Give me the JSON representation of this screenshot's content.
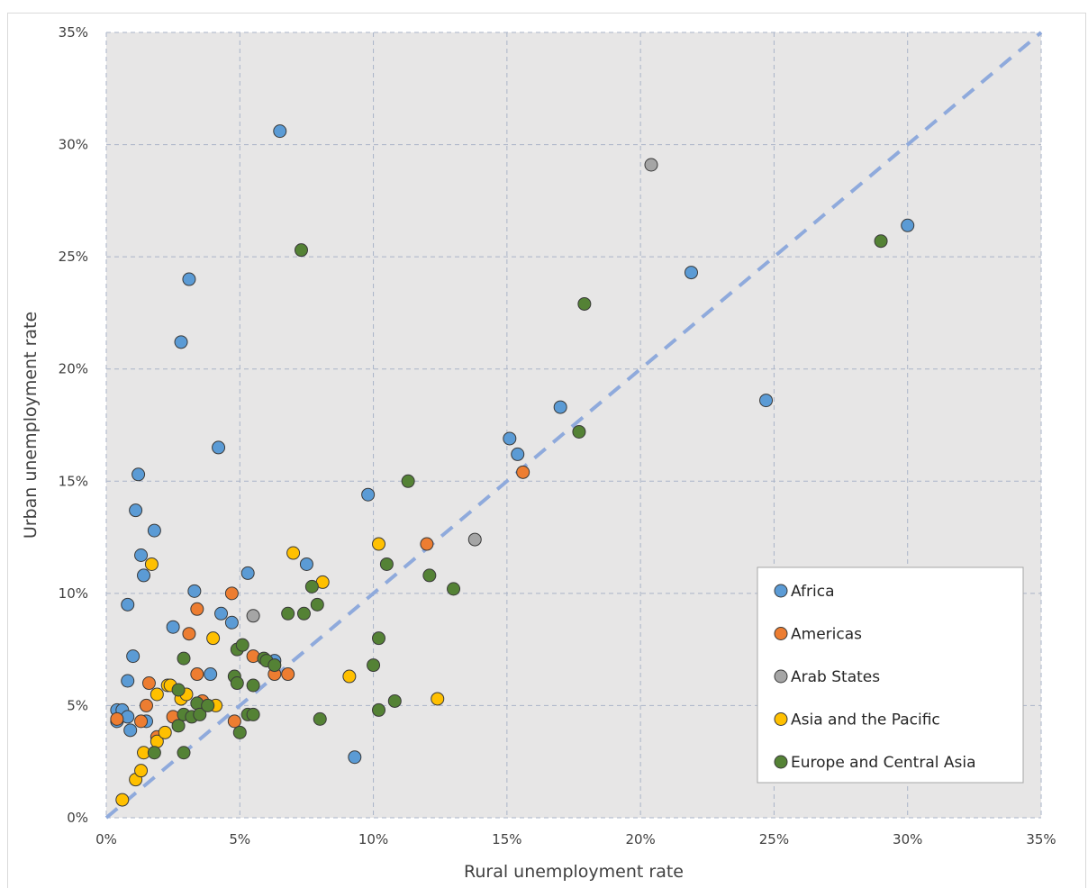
{
  "chart_data": {
    "type": "scatter",
    "xlabel": "Rural unemployment rate",
    "ylabel": "Urban unemployment rate",
    "xlim": [
      0,
      35
    ],
    "ylim": [
      0,
      35
    ],
    "x_ticks": [
      0,
      5,
      10,
      15,
      20,
      25,
      30,
      35
    ],
    "y_ticks": [
      0,
      5,
      10,
      15,
      20,
      25,
      30,
      35
    ],
    "tick_format": "{v}%",
    "grid": true,
    "legend_position": "bottom-right",
    "reference_line": {
      "from": [
        0,
        0
      ],
      "to": [
        35,
        35
      ],
      "style": "dashed",
      "color": "#8faadc"
    },
    "series": [
      {
        "name": "Africa",
        "color": "#5b9bd5",
        "points": [
          [
            0.4,
            4.8
          ],
          [
            0.4,
            4.3
          ],
          [
            0.6,
            4.8
          ],
          [
            0.8,
            4.5
          ],
          [
            0.9,
            3.9
          ],
          [
            0.8,
            6.1
          ],
          [
            0.8,
            9.5
          ],
          [
            1.0,
            7.2
          ],
          [
            1.1,
            13.7
          ],
          [
            1.2,
            15.3
          ],
          [
            1.3,
            11.7
          ],
          [
            1.4,
            10.8
          ],
          [
            1.5,
            4.3
          ],
          [
            1.8,
            12.8
          ],
          [
            2.5,
            8.5
          ],
          [
            2.8,
            21.2
          ],
          [
            3.1,
            24.0
          ],
          [
            3.3,
            10.1
          ],
          [
            3.9,
            6.4
          ],
          [
            4.2,
            16.5
          ],
          [
            4.3,
            9.1
          ],
          [
            4.7,
            8.7
          ],
          [
            5.3,
            10.9
          ],
          [
            6.3,
            7.0
          ],
          [
            6.5,
            30.6
          ],
          [
            7.5,
            11.3
          ],
          [
            9.3,
            2.7
          ],
          [
            9.8,
            14.4
          ],
          [
            15.1,
            16.9
          ],
          [
            15.4,
            16.2
          ],
          [
            17.0,
            18.3
          ],
          [
            21.9,
            24.3
          ],
          [
            24.7,
            18.6
          ],
          [
            30.0,
            26.4
          ]
        ]
      },
      {
        "name": "Americas",
        "color": "#ed7d31",
        "points": [
          [
            0.4,
            4.4
          ],
          [
            1.3,
            4.3
          ],
          [
            1.5,
            5.0
          ],
          [
            1.6,
            6.0
          ],
          [
            1.9,
            3.6
          ],
          [
            2.5,
            4.5
          ],
          [
            3.1,
            8.2
          ],
          [
            3.4,
            9.3
          ],
          [
            3.4,
            6.4
          ],
          [
            3.6,
            5.2
          ],
          [
            4.7,
            10.0
          ],
          [
            4.8,
            4.3
          ],
          [
            5.5,
            7.2
          ],
          [
            6.3,
            6.4
          ],
          [
            6.8,
            6.4
          ],
          [
            12.0,
            12.2
          ],
          [
            15.6,
            15.4
          ]
        ]
      },
      {
        "name": "Arab States",
        "color": "#a5a5a5",
        "points": [
          [
            5.5,
            9.0
          ],
          [
            13.8,
            12.4
          ],
          [
            20.4,
            29.1
          ]
        ]
      },
      {
        "name": "Asia and the Pacific",
        "color": "#ffc000",
        "points": [
          [
            0.6,
            0.8
          ],
          [
            1.1,
            1.7
          ],
          [
            1.3,
            2.1
          ],
          [
            1.4,
            2.9
          ],
          [
            1.7,
            11.3
          ],
          [
            1.9,
            5.5
          ],
          [
            1.9,
            3.4
          ],
          [
            2.2,
            3.8
          ],
          [
            2.3,
            5.9
          ],
          [
            2.4,
            5.9
          ],
          [
            2.8,
            5.3
          ],
          [
            3.0,
            5.5
          ],
          [
            4.0,
            8.0
          ],
          [
            4.1,
            5.0
          ],
          [
            7.0,
            11.8
          ],
          [
            8.1,
            10.5
          ],
          [
            9.1,
            6.3
          ],
          [
            10.2,
            12.2
          ],
          [
            12.4,
            5.3
          ]
        ]
      },
      {
        "name": "Europe and Central Asia",
        "color": "#548235",
        "points": [
          [
            1.8,
            2.9
          ],
          [
            2.7,
            4.1
          ],
          [
            2.7,
            5.7
          ],
          [
            2.9,
            2.9
          ],
          [
            2.9,
            4.6
          ],
          [
            2.9,
            7.1
          ],
          [
            3.2,
            4.5
          ],
          [
            3.4,
            5.1
          ],
          [
            3.5,
            4.6
          ],
          [
            3.8,
            5.0
          ],
          [
            4.8,
            6.3
          ],
          [
            4.9,
            7.5
          ],
          [
            4.9,
            6.0
          ],
          [
            5.0,
            3.8
          ],
          [
            5.1,
            7.7
          ],
          [
            5.3,
            4.6
          ],
          [
            5.5,
            5.9
          ],
          [
            5.5,
            4.6
          ],
          [
            5.9,
            7.1
          ],
          [
            6.0,
            7.0
          ],
          [
            6.3,
            6.8
          ],
          [
            6.8,
            9.1
          ],
          [
            7.3,
            25.3
          ],
          [
            7.4,
            9.1
          ],
          [
            7.7,
            10.3
          ],
          [
            7.9,
            9.5
          ],
          [
            8.0,
            4.4
          ],
          [
            10.0,
            6.8
          ],
          [
            10.2,
            8.0
          ],
          [
            10.2,
            4.8
          ],
          [
            10.5,
            11.3
          ],
          [
            10.8,
            5.2
          ],
          [
            11.3,
            15.0
          ],
          [
            12.1,
            10.8
          ],
          [
            13.0,
            10.2
          ],
          [
            17.7,
            17.2
          ],
          [
            17.9,
            22.9
          ],
          [
            29.0,
            25.7
          ]
        ]
      }
    ]
  }
}
